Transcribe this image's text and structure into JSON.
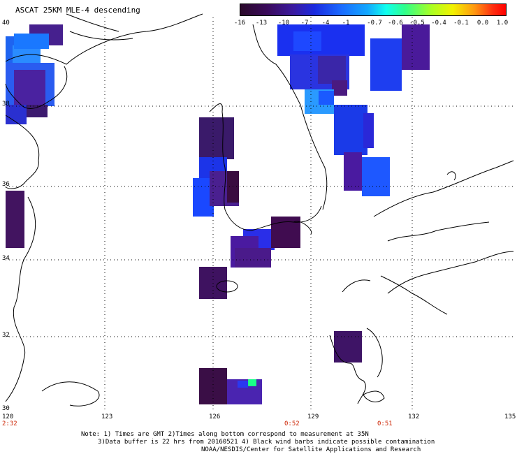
{
  "title": "ASCAT 25KM MLE-4 descending",
  "colorbar": {
    "ticks": [
      "-16",
      "-13",
      "-10",
      "-7",
      "-4",
      "-1",
      "-0.7",
      "-0.6",
      "-0.5",
      "-0.4",
      "-0.1",
      "0.0",
      "1.0"
    ],
    "colors": [
      "#2a0a2a",
      "#3a0a5a",
      "#3a1aa0",
      "#1a2ae0",
      "#1a6aff",
      "#12a8ff",
      "#10ffee",
      "#30ff8a",
      "#aaff22",
      "#f2f200",
      "#ff9a10",
      "#ff3010",
      "#ff0000"
    ]
  },
  "axes": {
    "lat_labels": [
      "40",
      "38",
      "36",
      "34",
      "32",
      "30"
    ],
    "lon_labels": [
      "120",
      "123",
      "126",
      "129",
      "132",
      "135"
    ]
  },
  "times": [
    "2:32",
    "0:52",
    "0:51"
  ],
  "notes": {
    "line1": "Note: 1) Times are GMT 2)Times along bottom correspond to measurement at 35N",
    "line2": "3)Data buffer is 22 hrs from 20160521 4) Black wind barbs indicate possible contamination",
    "line3": "NOAA/NESDIS/Center for Satellite Applications and Research"
  }
}
